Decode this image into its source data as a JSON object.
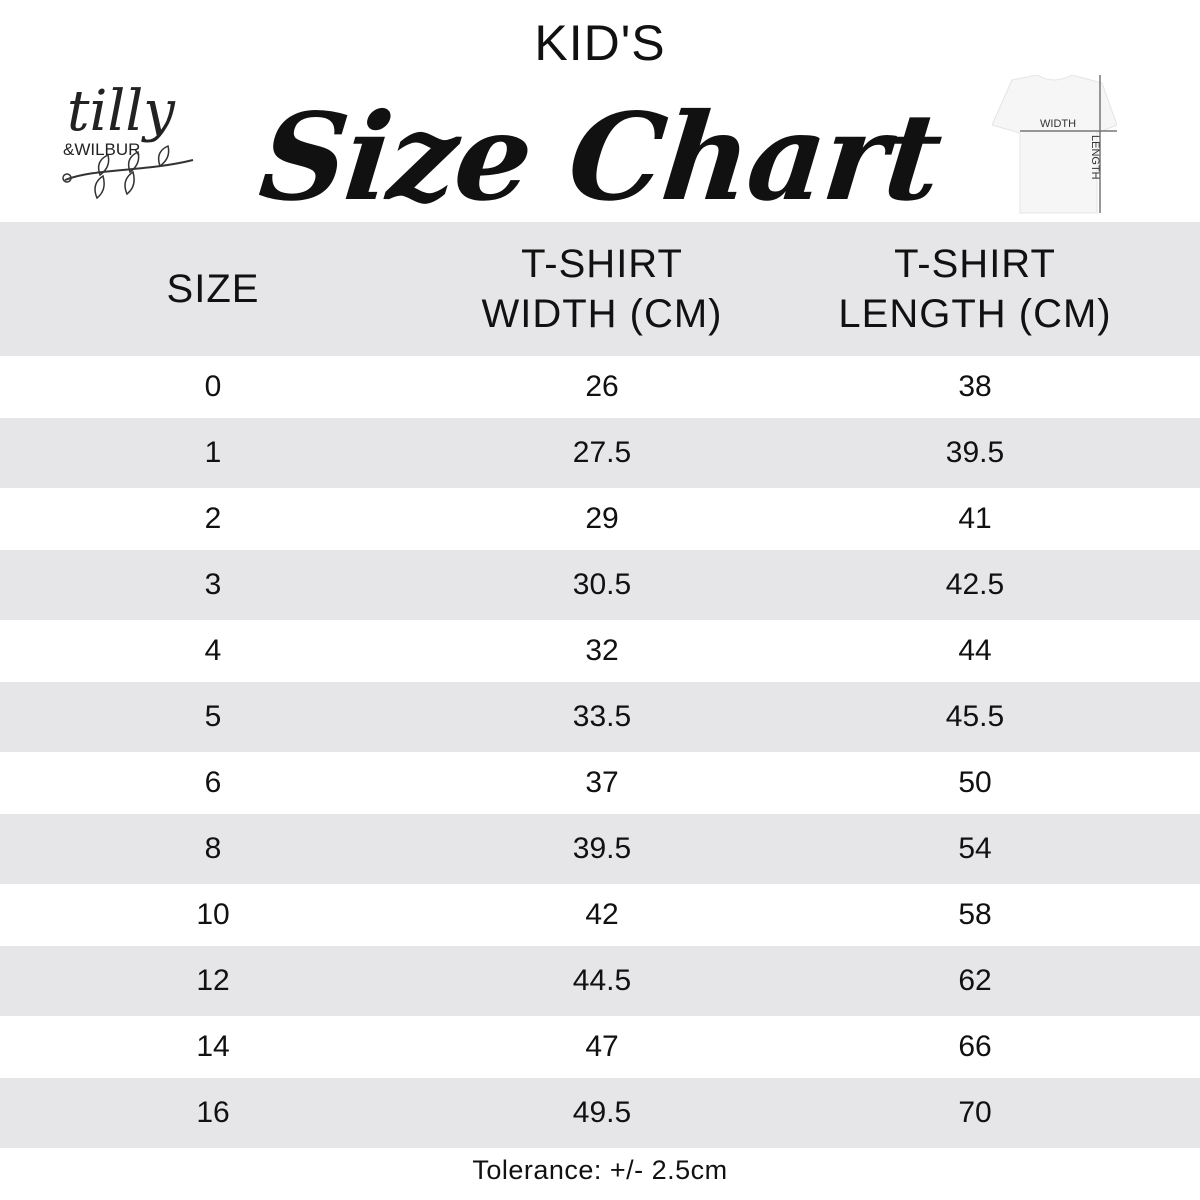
{
  "brand": {
    "logo_text_top": "tilly",
    "logo_text_bottom": "&WILBUR"
  },
  "header": {
    "kicker": "KID'S",
    "title": "Size Chart"
  },
  "shirt_diagram": {
    "width_label": "WIDTH",
    "length_label": "LENGTH"
  },
  "table": {
    "columns": [
      "SIZE",
      "T-SHIRT\nWIDTH (CM)",
      "T-SHIRT\nLENGTH (CM)"
    ],
    "column_lines": [
      [
        "SIZE"
      ],
      [
        "T-SHIRT",
        "WIDTH (CM)"
      ],
      [
        "T-SHIRT",
        "LENGTH (CM)"
      ]
    ],
    "rows": [
      [
        "0",
        "26",
        "38"
      ],
      [
        "1",
        "27.5",
        "39.5"
      ],
      [
        "2",
        "29",
        "41"
      ],
      [
        "3",
        "30.5",
        "42.5"
      ],
      [
        "4",
        "32",
        "44"
      ],
      [
        "5",
        "33.5",
        "45.5"
      ],
      [
        "6",
        "37",
        "50"
      ],
      [
        "8",
        "39.5",
        "54"
      ],
      [
        "10",
        "42",
        "58"
      ],
      [
        "12",
        "44.5",
        "62"
      ],
      [
        "14",
        "47",
        "66"
      ],
      [
        "16",
        "49.5",
        "70"
      ]
    ]
  },
  "footer": {
    "tolerance": "Tolerance: +/- 2.5cm"
  },
  "colors": {
    "band": "#e6e6e8",
    "text": "#111111"
  }
}
